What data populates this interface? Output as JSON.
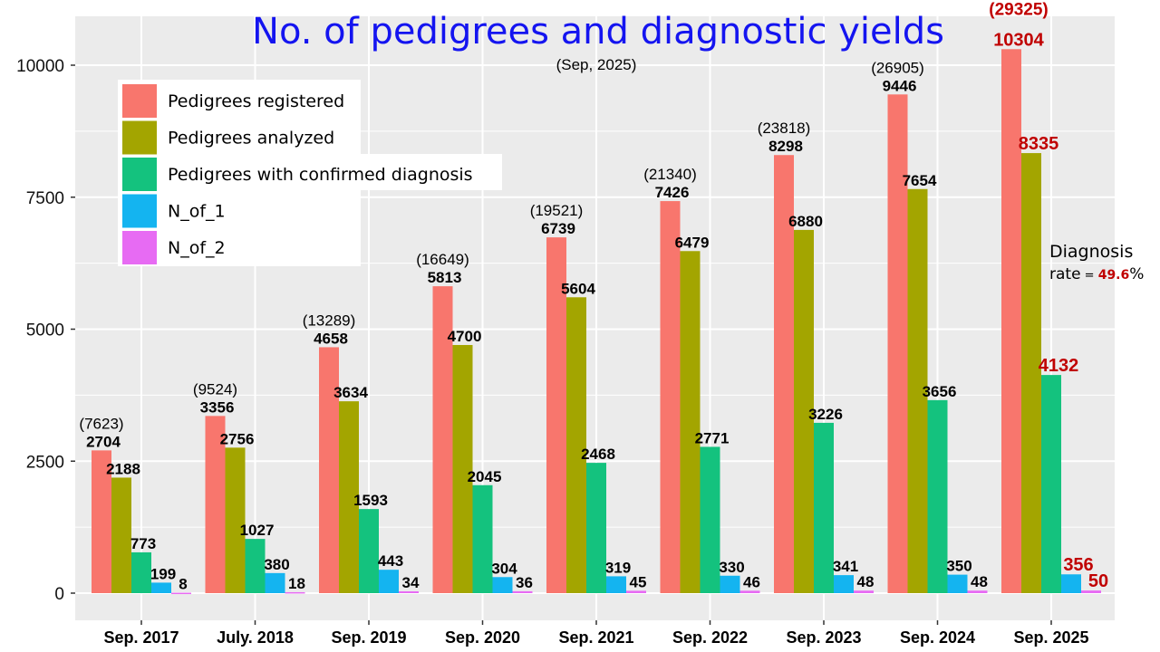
{
  "chart_data": {
    "type": "bar",
    "title": "No. of pedigrees and diagnostic yields",
    "subtitle": "(Sep, 2025)",
    "xlabel": "",
    "ylabel": "",
    "ylim": [
      0,
      11000
    ],
    "yticks": [
      0,
      2500,
      5000,
      7500,
      10000
    ],
    "grid": true,
    "legend_position": "top-left",
    "categories": [
      "Sep. 2017",
      "July. 2018",
      "Sep. 2019",
      "Sep. 2020",
      "Sep. 2021",
      "Sep. 2022",
      "Sep. 2023",
      "Sep. 2024",
      "Sep. 2025"
    ],
    "totals_in_parentheses": [
      "(7623)",
      "(9524)",
      "(13289)",
      "(16649)",
      "(19521)",
      "(21340)",
      "(23818)",
      "(26905)",
      "(29325)"
    ],
    "series": [
      {
        "name": "Pedigrees registered",
        "color": "#F8766D",
        "values": [
          2704,
          3356,
          4658,
          5813,
          6739,
          7426,
          8298,
          9446,
          10304
        ]
      },
      {
        "name": "Pedigrees analyzed",
        "color": "#A3A500",
        "values": [
          2188,
          2756,
          3634,
          4700,
          5604,
          6479,
          6880,
          7654,
          8335
        ]
      },
      {
        "name": "Pedigrees with confirmed diagnosis",
        "color": "#14C27E",
        "values": [
          773,
          1027,
          1593,
          2045,
          2468,
          2771,
          3226,
          3656,
          4132
        ]
      },
      {
        "name": "N_of_1",
        "color": "#14B4F0",
        "values": [
          199,
          380,
          443,
          304,
          319,
          330,
          341,
          350,
          356
        ]
      },
      {
        "name": "N_of_2",
        "color": "#E76BF3",
        "values": [
          8,
          18,
          34,
          36,
          45,
          46,
          48,
          48,
          50
        ]
      }
    ],
    "annotation": {
      "line1": "Diagnosis",
      "line2_prefix": "rate",
      "line2_eq": " = ",
      "line2_value": "49.6",
      "line2_suffix": "%"
    },
    "colors": {
      "panel_bg": "#EBEBEB",
      "grid": "#FFFFFF",
      "title": "#1414F0",
      "highlight": "#C00000",
      "label": "#000000"
    }
  }
}
